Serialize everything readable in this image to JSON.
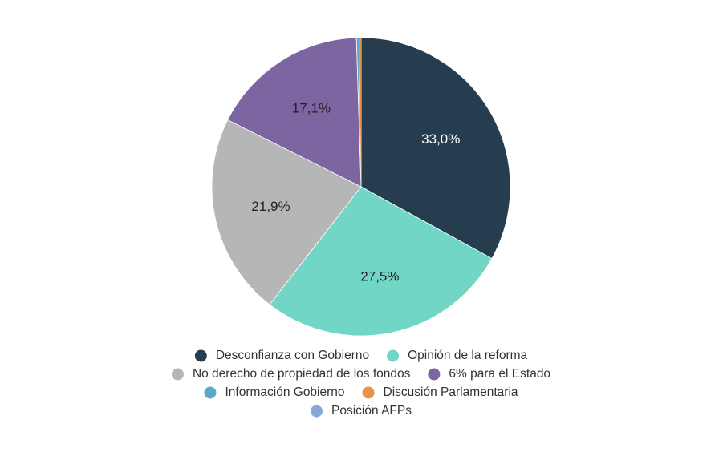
{
  "chart_data": {
    "type": "pie",
    "title": "",
    "legend_position": "bottom",
    "slices": [
      {
        "label": "Desconfianza con Gobierno",
        "value": 33.0,
        "display": "33,0%",
        "color": "#263d4f",
        "label_color": "#ffffff"
      },
      {
        "label": "Opinión de la reforma",
        "value": 27.5,
        "display": "27,5%",
        "color": "#72d6c7",
        "label_color": "#222222"
      },
      {
        "label": "No derecho de propiedad de los fondos",
        "value": 21.9,
        "display": "21,9%",
        "color": "#b6b6b6",
        "label_color": "#222222"
      },
      {
        "label": "6% para el Estado",
        "value": 17.1,
        "display": "17,1%",
        "color": "#7c65a1",
        "label_color": "#222222"
      },
      {
        "label": "Información Gobierno",
        "value": 0.3,
        "display": "",
        "color": "#5aa9c8",
        "label_color": "#222222"
      },
      {
        "label": "Discusión Parlamentaria",
        "value": 0.2,
        "display": "",
        "color": "#e8924a",
        "label_color": "#222222"
      },
      {
        "label": "Posición AFPs",
        "value": 0.0,
        "display": "",
        "color": "#88a8d8",
        "label_color": "#222222"
      }
    ]
  }
}
